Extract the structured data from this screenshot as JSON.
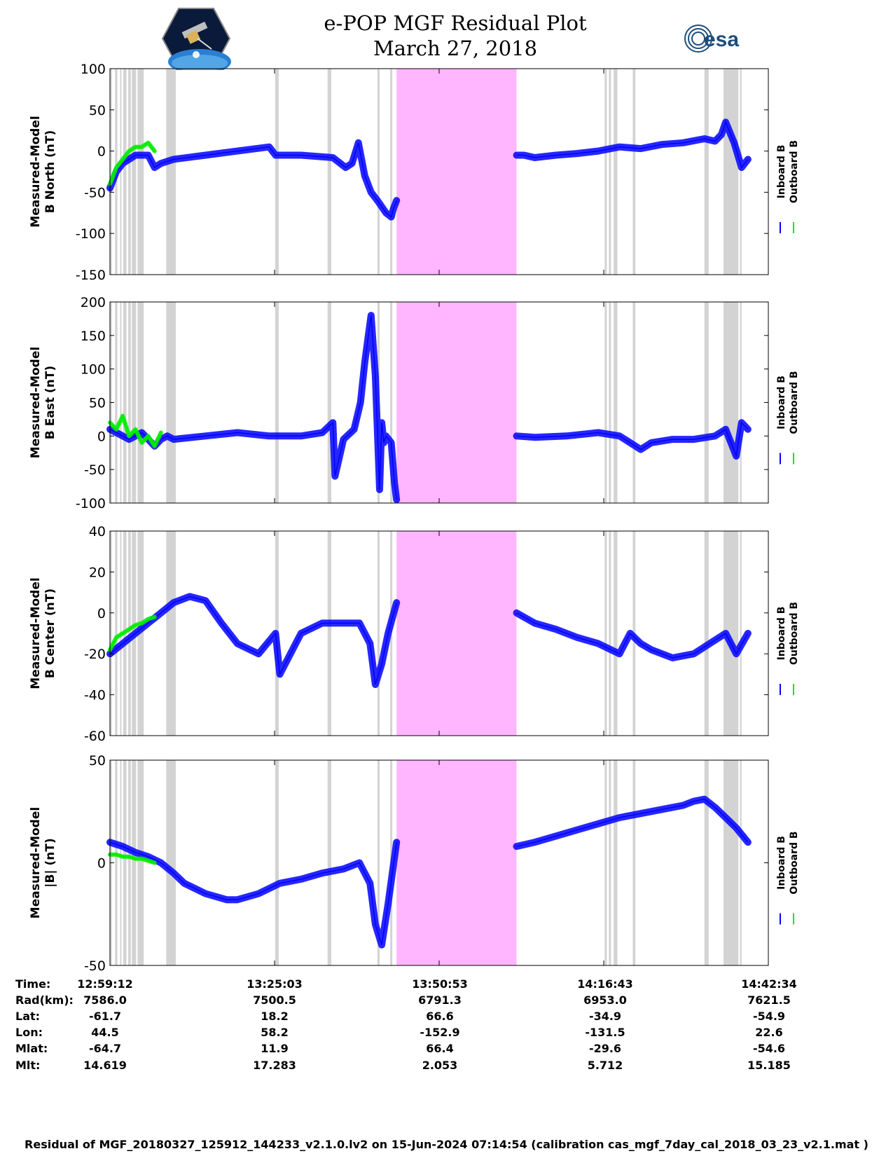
{
  "header": {
    "title_line1": "e-POP MGF Residual Plot",
    "title_line2": "March 27, 2018",
    "left_logo": "cassiope-mission-logo",
    "right_logo_text": "esa"
  },
  "legend": {
    "inboard_label": "Inboard B",
    "outboard_label": "Outboard B",
    "inboard_color": "#0000ff",
    "outboard_color": "#00ee00"
  },
  "colors": {
    "gap_shading": "#d3d3d3",
    "highlight_band": "#ffb6ff",
    "axes": "#000000"
  },
  "chart_data": [
    {
      "type": "line",
      "ylabel_line1": "Measured-Model",
      "ylabel_line2": "B North (nT)",
      "ylim": [
        -150,
        100
      ],
      "yticks": [
        -150,
        -100,
        -50,
        0,
        50,
        100
      ],
      "series": [
        {
          "name": "Inboard B",
          "color": "#0000ff",
          "x_sec": [
            0,
            60,
            120,
            180,
            240,
            300,
            360,
            420,
            480,
            600,
            900,
            1200,
            1500,
            1560,
            1800,
            2100,
            2220,
            2280,
            2340,
            2400,
            2460,
            2520,
            2600,
            2650,
            2670,
            2700
          ],
          "y": [
            -45,
            -25,
            -15,
            -10,
            -5,
            -5,
            -5,
            -20,
            -15,
            -10,
            -5,
            0,
            5,
            -5,
            -5,
            -8,
            -20,
            -15,
            10,
            -30,
            -50,
            -60,
            -75,
            -80,
            -70,
            -60
          ]
        },
        {
          "name": "Inboard B",
          "color": "#0000ff",
          "x_sec": [
            3830,
            3900,
            4000,
            4200,
            4400,
            4600,
            4800,
            5000,
            5200,
            5400,
            5600,
            5700,
            5760,
            5800,
            5880,
            5950,
            6010
          ],
          "y": [
            -5,
            -5,
            -8,
            -5,
            -3,
            0,
            5,
            3,
            8,
            10,
            15,
            12,
            20,
            35,
            10,
            -20,
            -10
          ]
        },
        {
          "name": "Outboard B",
          "color": "#00ee00",
          "x_sec": [
            0,
            60,
            120,
            180,
            240,
            300,
            360,
            420
          ],
          "y": [
            -40,
            -20,
            -10,
            0,
            5,
            5,
            10,
            0
          ]
        }
      ]
    },
    {
      "type": "line",
      "ylabel_line1": "Measured-Model",
      "ylabel_line2": "B East (nT)",
      "ylim": [
        -100,
        200
      ],
      "yticks": [
        -100,
        -50,
        0,
        50,
        100,
        150,
        200
      ],
      "series": [
        {
          "name": "Inboard B",
          "color": "#0000ff",
          "x_sec": [
            0,
            60,
            120,
            180,
            240,
            300,
            360,
            420,
            480,
            540,
            600,
            900,
            1200,
            1500,
            1800,
            2000,
            2100,
            2120,
            2200,
            2300,
            2360,
            2400,
            2460,
            2500,
            2540,
            2560,
            2580,
            2600,
            2650,
            2680,
            2700
          ],
          "y": [
            10,
            5,
            0,
            -5,
            0,
            5,
            -5,
            -15,
            -5,
            0,
            -5,
            0,
            5,
            0,
            0,
            5,
            20,
            -60,
            -5,
            10,
            50,
            110,
            180,
            90,
            -80,
            20,
            -10,
            0,
            -10,
            -70,
            -95
          ]
        },
        {
          "name": "Inboard B",
          "color": "#0000ff",
          "x_sec": [
            3830,
            4000,
            4300,
            4600,
            4800,
            4900,
            5000,
            5100,
            5300,
            5500,
            5700,
            5800,
            5900,
            5950,
            6010
          ],
          "y": [
            0,
            -2,
            0,
            5,
            0,
            -10,
            -20,
            -10,
            -5,
            -5,
            0,
            10,
            -30,
            20,
            10
          ]
        },
        {
          "name": "Outboard B",
          "color": "#00ee00",
          "x_sec": [
            0,
            60,
            120,
            180,
            240,
            300,
            360,
            420,
            480
          ],
          "y": [
            20,
            10,
            30,
            0,
            10,
            -10,
            0,
            -15,
            5
          ]
        }
      ]
    },
    {
      "type": "line",
      "ylabel_line1": "Measured-Model",
      "ylabel_line2": "B Center (nT)",
      "ylim": [
        -60,
        40
      ],
      "yticks": [
        -60,
        -40,
        -20,
        0,
        20,
        40
      ],
      "series": [
        {
          "name": "Inboard B",
          "color": "#0000ff",
          "x_sec": [
            0,
            120,
            240,
            360,
            480,
            600,
            750,
            900,
            1050,
            1200,
            1400,
            1560,
            1600,
            1800,
            2000,
            2200,
            2350,
            2450,
            2500,
            2560,
            2620,
            2700
          ],
          "y": [
            -20,
            -15,
            -10,
            -5,
            0,
            5,
            8,
            6,
            -5,
            -15,
            -20,
            -10,
            -30,
            -10,
            -5,
            -5,
            -5,
            -15,
            -35,
            -25,
            -10,
            5
          ]
        },
        {
          "name": "Inboard B",
          "color": "#0000ff",
          "x_sec": [
            3830,
            4000,
            4200,
            4400,
            4600,
            4800,
            4900,
            5000,
            5100,
            5300,
            5500,
            5650,
            5800,
            5900,
            6010
          ],
          "y": [
            0,
            -5,
            -8,
            -12,
            -15,
            -20,
            -10,
            -15,
            -18,
            -22,
            -20,
            -15,
            -10,
            -20,
            -10
          ]
        },
        {
          "name": "Outboard B",
          "color": "#00ee00",
          "x_sec": [
            0,
            60,
            120,
            180,
            240,
            300,
            360,
            420
          ],
          "y": [
            -18,
            -12,
            -10,
            -8,
            -6,
            -5,
            -3,
            -2
          ]
        }
      ]
    },
    {
      "type": "line",
      "ylabel_line1": "Measured-Model",
      "ylabel_line2": "|B| (nT)",
      "ylim": [
        -50,
        50
      ],
      "yticks": [
        -50,
        0,
        50
      ],
      "series": [
        {
          "name": "Inboard B",
          "color": "#0000ff",
          "x_sec": [
            0,
            120,
            240,
            360,
            480,
            600,
            700,
            900,
            1100,
            1200,
            1400,
            1600,
            1800,
            2000,
            2200,
            2350,
            2450,
            2500,
            2560,
            2620,
            2700
          ],
          "y": [
            10,
            8,
            5,
            3,
            0,
            -5,
            -10,
            -15,
            -18,
            -18,
            -15,
            -10,
            -8,
            -5,
            -3,
            0,
            -10,
            -30,
            -40,
            -20,
            10
          ]
        },
        {
          "name": "Inboard B",
          "color": "#0000ff",
          "x_sec": [
            3830,
            4000,
            4200,
            4400,
            4600,
            4800,
            5000,
            5200,
            5400,
            5500,
            5600,
            5700,
            5800,
            5900,
            6010
          ],
          "y": [
            8,
            10,
            13,
            16,
            19,
            22,
            24,
            26,
            28,
            30,
            31,
            27,
            22,
            17,
            10
          ]
        },
        {
          "name": "Outboard B",
          "color": "#00ee00",
          "x_sec": [
            0,
            60,
            120,
            180,
            240,
            300,
            360,
            420
          ],
          "y": [
            4,
            4,
            3,
            3,
            2,
            2,
            1,
            0
          ]
        }
      ]
    }
  ],
  "time_axis": {
    "start_label": "12:59:12",
    "end_label": "14:42:34",
    "total_sec": 6202,
    "highlight_band_sec": [
      2700,
      3830
    ],
    "gap_bands_sec": [
      [
        0,
        18
      ],
      [
        48,
        70
      ],
      [
        95,
        108
      ],
      [
        124,
        155
      ],
      [
        172,
        196
      ],
      [
        206,
        246
      ],
      [
        260,
        318
      ],
      [
        530,
        620
      ],
      [
        1556,
        1590
      ],
      [
        2050,
        2085
      ],
      [
        2520,
        2540
      ],
      [
        2640,
        2660
      ],
      [
        4660,
        4680
      ],
      [
        4700,
        4720
      ],
      [
        4745,
        4780
      ],
      [
        4925,
        4950
      ],
      [
        5600,
        5640
      ],
      [
        5780,
        5920
      ],
      [
        5935,
        5950
      ]
    ]
  },
  "ephemeris": {
    "row_labels": [
      "Time:",
      "Rad(km):",
      "Lat:",
      "Lon:",
      "Mlat:",
      "Mlt:"
    ],
    "columns": [
      {
        "time": "12:59:12",
        "rad": "7586.0",
        "lat": "-61.7",
        "lon": "44.5",
        "mlat": "-64.7",
        "mlt": "14.619"
      },
      {
        "time": "13:25:03",
        "rad": "7500.5",
        "lat": "18.2",
        "lon": "58.2",
        "mlat": "11.9",
        "mlt": "17.283"
      },
      {
        "time": "13:50:53",
        "rad": "6791.3",
        "lat": "66.6",
        "lon": "-152.9",
        "mlat": "66.4",
        "mlt": "2.053"
      },
      {
        "time": "14:16:43",
        "rad": "6953.0",
        "lat": "-34.9",
        "lon": "-131.5",
        "mlat": "-29.6",
        "mlt": "5.712"
      },
      {
        "time": "14:42:34",
        "rad": "7621.5",
        "lat": "-54.9",
        "lon": "22.6",
        "mlat": "-54.6",
        "mlt": "15.185"
      }
    ]
  },
  "footer": {
    "text": "Residual of MGF_20180327_125912_144233_v2.1.0.lv2 on 15-Jun-2024 07:14:54 (calibration cas_mgf_7day_cal_2018_03_23_v2.1.mat )"
  }
}
